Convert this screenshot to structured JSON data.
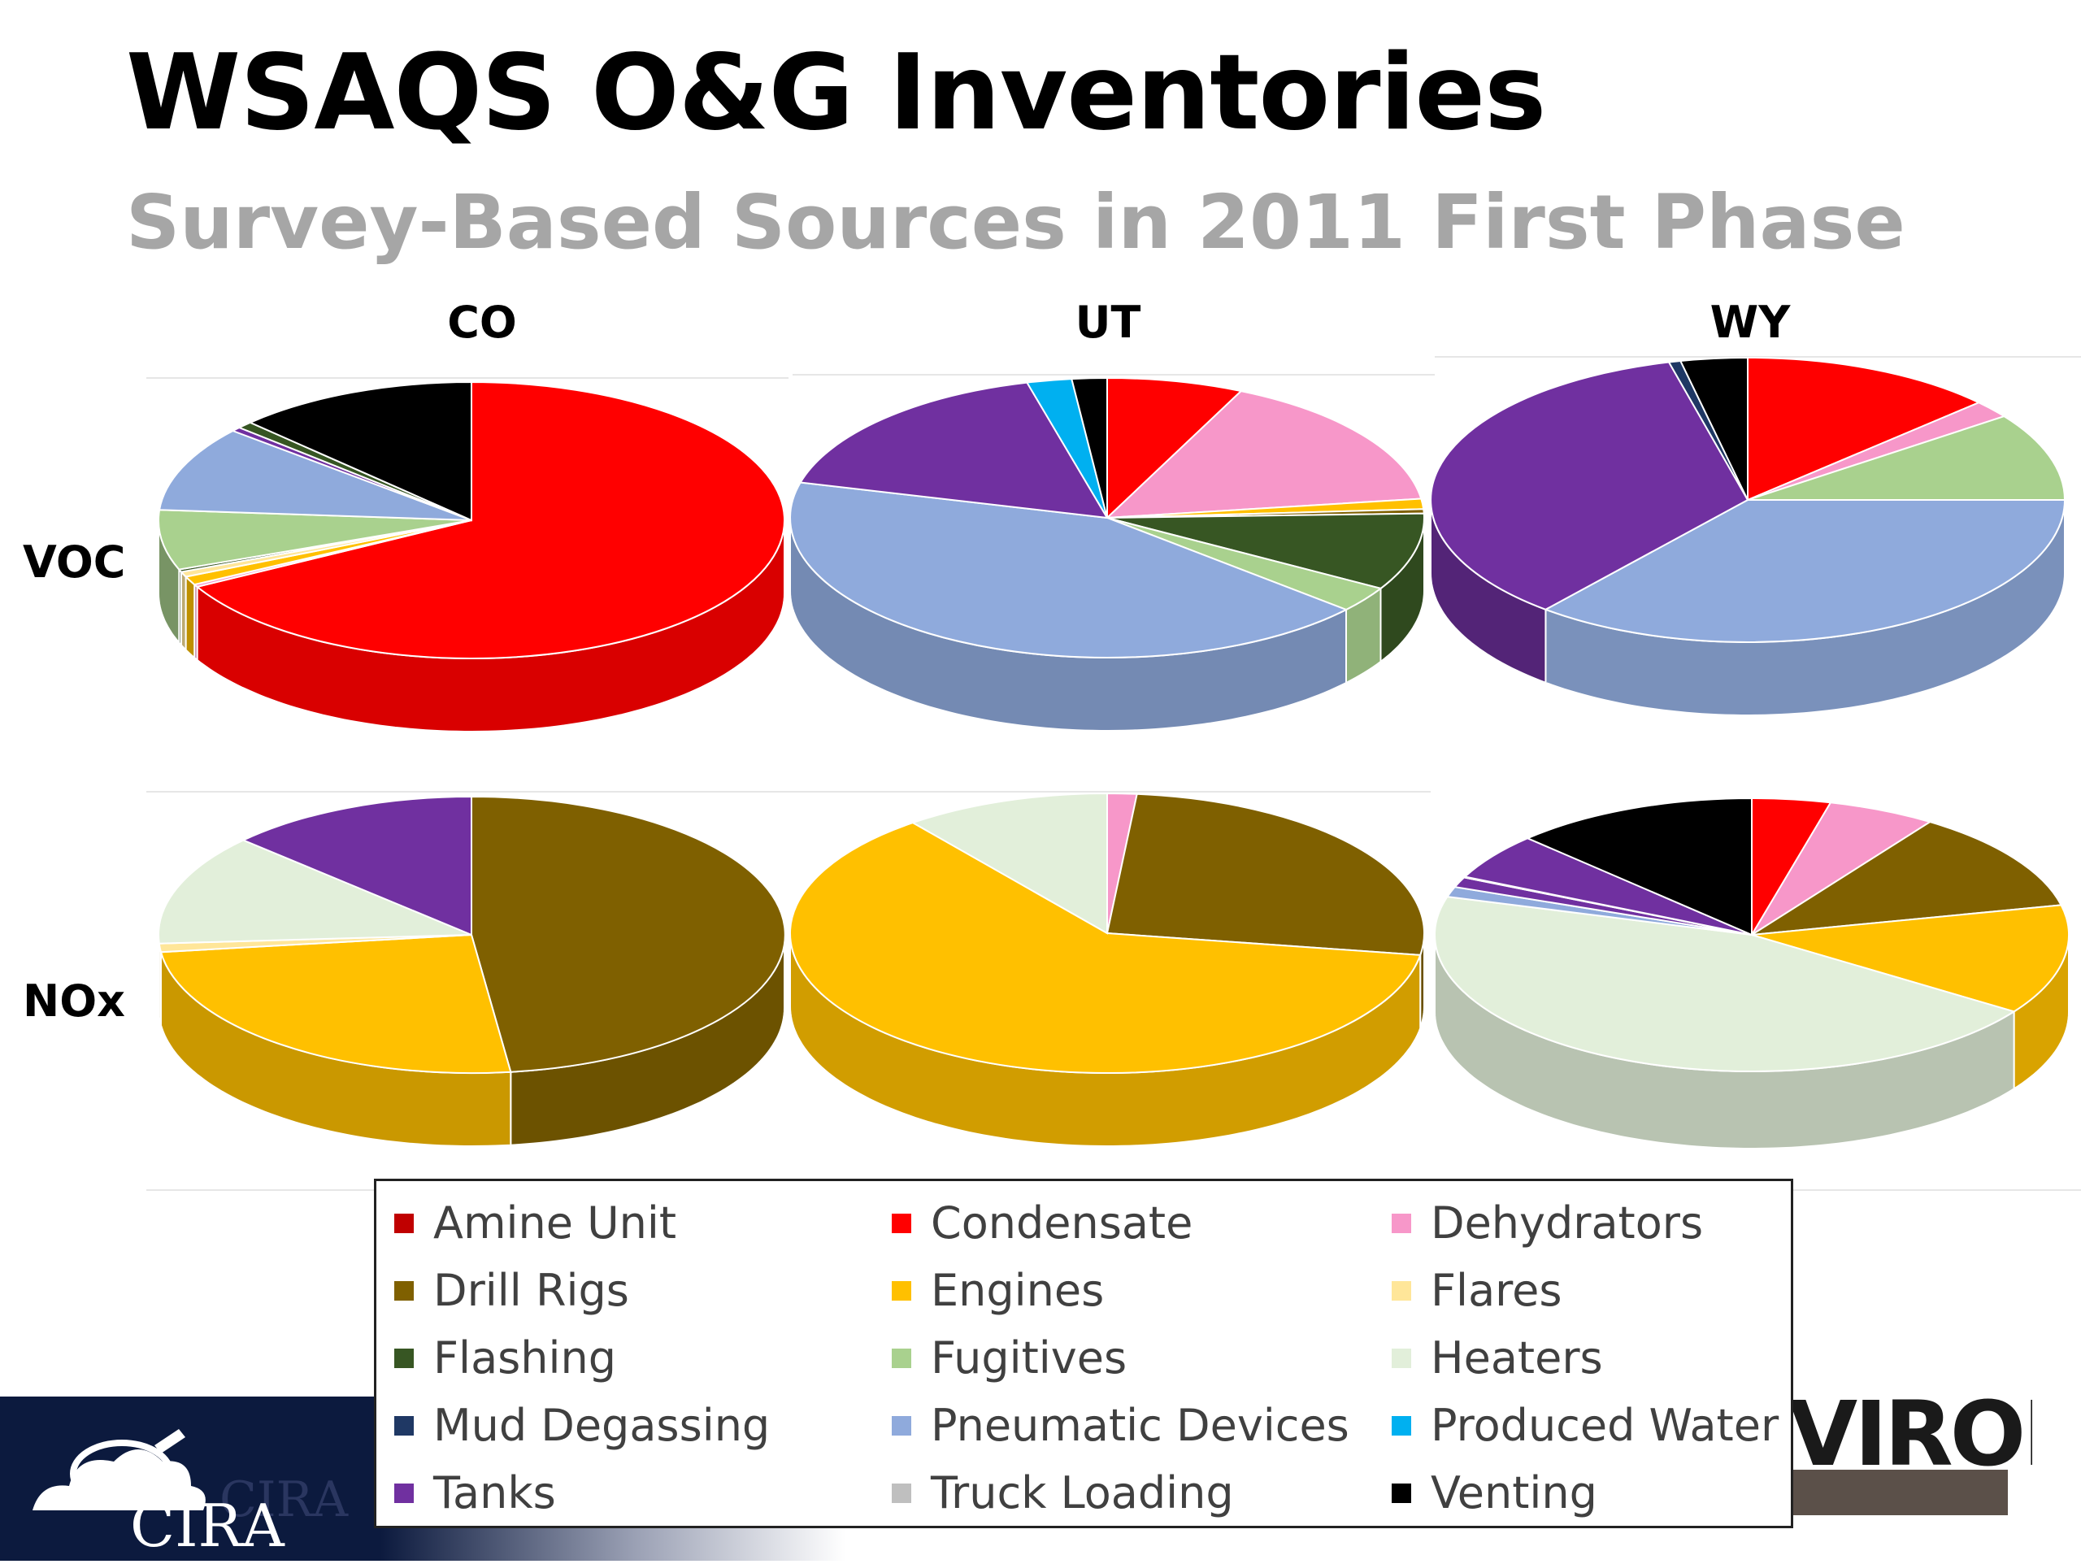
{
  "title": "WSAQS O&G Inventories",
  "subtitle": "Survey-Based Sources in 2011 First Phase",
  "columns": [
    "CO",
    "UT",
    "WY"
  ],
  "rows": [
    "VOC",
    "NOx"
  ],
  "logo": {
    "name": "CIRA",
    "ghost": "CIRA"
  },
  "partner_logo_text": "VIRON",
  "chart_data": {
    "type": "pie",
    "title": "Survey-Based Sources in 2011 First Phase",
    "legend_position": "bottom",
    "legend": [
      {
        "name": "Amine Unit",
        "color": "#c00000"
      },
      {
        "name": "Condensate",
        "color": "#ff0000"
      },
      {
        "name": "Dehydrators",
        "color": "#f797c9"
      },
      {
        "name": "Drill Rigs",
        "color": "#7f6000"
      },
      {
        "name": "Engines",
        "color": "#ffc000"
      },
      {
        "name": "Flares",
        "color": "#ffe699"
      },
      {
        "name": "Flashing",
        "color": "#375623"
      },
      {
        "name": "Fugitives",
        "color": "#a9d18e"
      },
      {
        "name": "Heaters",
        "color": "#e2efda"
      },
      {
        "name": "Mud Degassing",
        "color": "#1f3864"
      },
      {
        "name": "Pneumatic Devices",
        "color": "#8faadc"
      },
      {
        "name": "Produced Water",
        "color": "#00b0f0"
      },
      {
        "name": "Tanks",
        "color": "#7030a0"
      },
      {
        "name": "Truck Loading",
        "color": "#bfbfbf"
      },
      {
        "name": "Venting",
        "color": "#000000"
      }
    ],
    "charts": [
      {
        "pollutant": "VOC",
        "state": "CO",
        "slices": [
          {
            "name": "Condensate",
            "value": 67
          },
          {
            "name": "Dehydrators",
            "value": 0.3
          },
          {
            "name": "Engines",
            "value": 1.0
          },
          {
            "name": "Flares",
            "value": 0.6
          },
          {
            "name": "Flashing",
            "value": 0.3
          },
          {
            "name": "Fugitives",
            "value": 7
          },
          {
            "name": "Pneumatic Devices",
            "value": 10
          },
          {
            "name": "Tanks",
            "value": 0.5
          },
          {
            "name": "Flashing",
            "value": 0.8
          },
          {
            "name": "Venting",
            "value": 12.5
          }
        ]
      },
      {
        "pollutant": "VOC",
        "state": "UT",
        "slices": [
          {
            "name": "Condensate",
            "value": 7
          },
          {
            "name": "Dehydrators",
            "value": 16
          },
          {
            "name": "Engines",
            "value": 1.2
          },
          {
            "name": "Drill Rigs",
            "value": 0.5
          },
          {
            "name": "Flashing",
            "value": 9
          },
          {
            "name": "Fugitives",
            "value": 3
          },
          {
            "name": "Pneumatic Devices",
            "value": 43
          },
          {
            "name": "Tanks",
            "value": 17
          },
          {
            "name": "Produced Water",
            "value": 2.3
          },
          {
            "name": "Venting",
            "value": 1.8
          }
        ]
      },
      {
        "pollutant": "VOC",
        "state": "WY",
        "slices": [
          {
            "name": "Condensate",
            "value": 13
          },
          {
            "name": "Dehydrators",
            "value": 2
          },
          {
            "name": "Fugitives",
            "value": 10
          },
          {
            "name": "Pneumatic Devices",
            "value": 36
          },
          {
            "name": "Tanks",
            "value": 35
          },
          {
            "name": "Mud Degassing",
            "value": 0.6
          },
          {
            "name": "Venting",
            "value": 3.4
          }
        ]
      },
      {
        "pollutant": "NOx",
        "state": "CO",
        "slices": [
          {
            "name": "Drill Rigs",
            "value": 48
          },
          {
            "name": "Engines",
            "value": 25
          },
          {
            "name": "Flares",
            "value": 1
          },
          {
            "name": "Heaters",
            "value": 13
          },
          {
            "name": "Tanks",
            "value": 13
          }
        ]
      },
      {
        "pollutant": "NOx",
        "state": "UT",
        "slices": [
          {
            "name": "Dehydrators",
            "value": 1.5
          },
          {
            "name": "Drill Rigs",
            "value": 26
          },
          {
            "name": "Engines",
            "value": 62
          },
          {
            "name": "Heaters",
            "value": 10.5
          }
        ]
      },
      {
        "pollutant": "NOx",
        "state": "WY",
        "slices": [
          {
            "name": "Condensate",
            "value": 4
          },
          {
            "name": "Dehydrators",
            "value": 5.5
          },
          {
            "name": "Drill Rigs",
            "value": 12
          },
          {
            "name": "Engines",
            "value": 13
          },
          {
            "name": "Heaters",
            "value": 45
          },
          {
            "name": "Pneumatic Devices",
            "value": 1.2
          },
          {
            "name": "Tanks",
            "value": 1.2
          },
          {
            "name": "Dehydrators",
            "value": 0.1
          },
          {
            "name": "Tanks",
            "value": 5.5
          },
          {
            "name": "Venting",
            "value": 12.5
          }
        ]
      }
    ]
  }
}
